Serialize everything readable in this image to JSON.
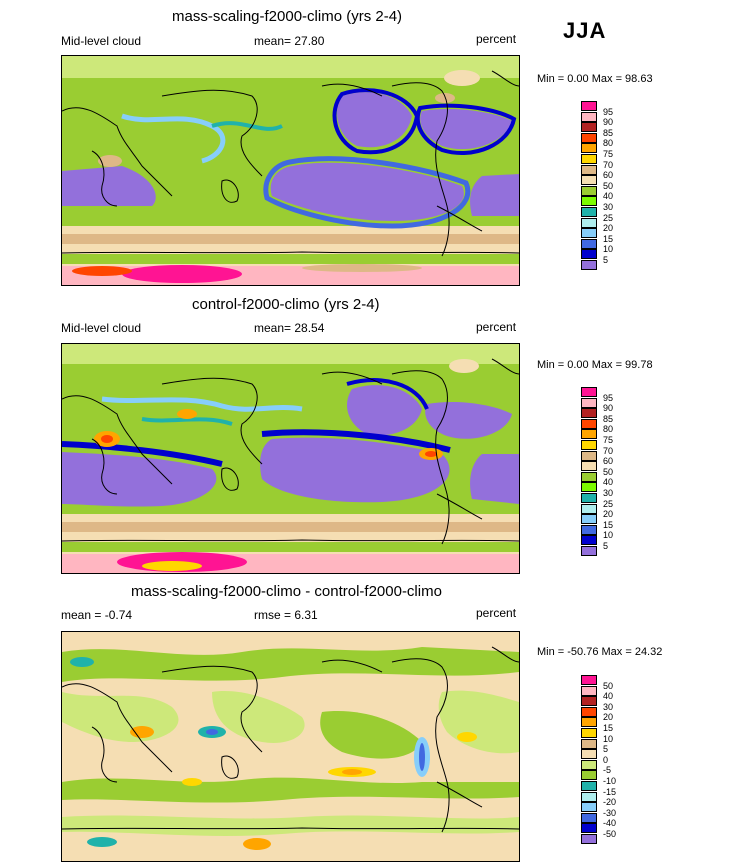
{
  "season": "JJA",
  "panels": [
    {
      "title": "mass-scaling-f2000-climo (yrs 2-4)",
      "left_label": "Mid-level cloud",
      "center_label": "mean=  27.80",
      "right_label": "percent",
      "minmax": "Min =   0.00 Max =  98.63",
      "levels": [
        "95",
        "90",
        "85",
        "80",
        "75",
        "70",
        "60",
        "50",
        "40",
        "30",
        "25",
        "20",
        "15",
        "10",
        "5"
      ],
      "colors": [
        "#ff1493",
        "#ffb6c1",
        "#b22222",
        "#ff4500",
        "#ffa500",
        "#ffd700",
        "#deb887",
        "#f5deb3",
        "#9acd32",
        "#7cfc00",
        "#20b2aa",
        "#afeeee",
        "#87cefa",
        "#4169e1",
        "#0000cd",
        "#9370db"
      ]
    },
    {
      "title": "control-f2000-climo (yrs 2-4)",
      "left_label": "Mid-level cloud",
      "center_label": "mean=  28.54",
      "right_label": "percent",
      "minmax": "Min =   0.00 Max =  99.78",
      "levels": [
        "95",
        "90",
        "85",
        "80",
        "75",
        "70",
        "60",
        "50",
        "40",
        "30",
        "25",
        "20",
        "15",
        "10",
        "5"
      ],
      "colors": [
        "#ff1493",
        "#ffb6c1",
        "#b22222",
        "#ff4500",
        "#ffa500",
        "#ffd700",
        "#deb887",
        "#f5deb3",
        "#9acd32",
        "#7cfc00",
        "#20b2aa",
        "#afeeee",
        "#87cefa",
        "#4169e1",
        "#0000cd",
        "#9370db"
      ]
    },
    {
      "title": "mass-scaling-f2000-climo - control-f2000-climo",
      "left_label": "mean =  -0.74",
      "center_label": "rmse =   6.31",
      "right_label": "percent",
      "minmax": "Min = -50.76 Max =  24.32",
      "levels": [
        "50",
        "40",
        "30",
        "20",
        "15",
        "10",
        "5",
        "0",
        "-5",
        "-10",
        "-15",
        "-20",
        "-30",
        "-40",
        "-50"
      ],
      "colors": [
        "#ff1493",
        "#ffb6c1",
        "#b22222",
        "#ff4500",
        "#ffa500",
        "#ffd700",
        "#deb887",
        "#f5deb3",
        "#cde87a",
        "#9acd32",
        "#20b2aa",
        "#afeeee",
        "#87cefa",
        "#4169e1",
        "#0000cd",
        "#9370db"
      ]
    }
  ]
}
